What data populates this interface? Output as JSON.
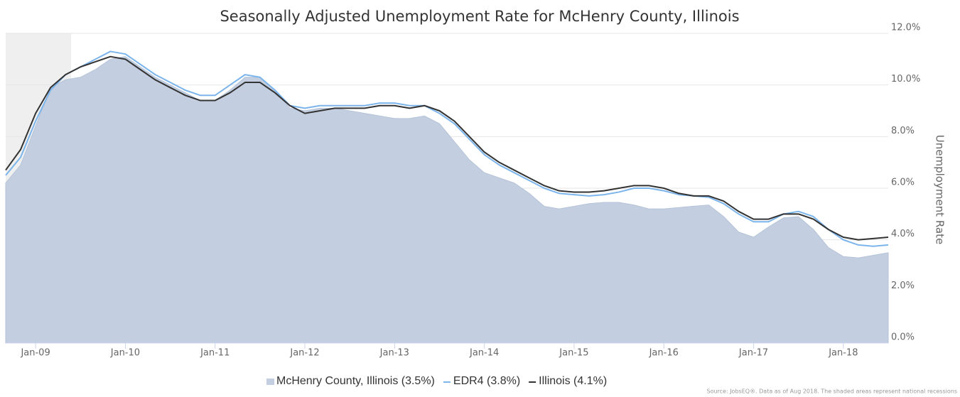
{
  "chart_data": {
    "type": "area-line",
    "title": "Seasonally Adjusted Unemployment Rate for McHenry County, Illinois",
    "y_axis_label": "Unemployment Rate",
    "source": "Source: JobsEQ®. Data as of Aug 2018. The shaded areas represent national recessions",
    "categories": [
      null,
      null,
      "Jan-09",
      null,
      null,
      null,
      null,
      null,
      "Jan-10",
      null,
      null,
      null,
      null,
      null,
      "Jan-11",
      null,
      null,
      null,
      null,
      null,
      "Jan-12",
      null,
      null,
      null,
      null,
      null,
      "Jan-13",
      null,
      null,
      null,
      null,
      null,
      "Jan-14",
      null,
      null,
      null,
      null,
      null,
      "Jan-15",
      null,
      null,
      null,
      null,
      null,
      "Jan-16",
      null,
      null,
      null,
      null,
      null,
      "Jan-17",
      null,
      null,
      null,
      null,
      null,
      "Jan-18",
      null,
      null,
      null
    ],
    "series": [
      {
        "name": "McHenry County, Illinois (3.5%)",
        "kind": "area",
        "color": "#c3cfe0",
        "values": [
          6.2,
          6.9,
          8.4,
          9.9,
          10.2,
          10.3,
          10.6,
          11.0,
          11.1,
          10.7,
          10.3,
          10.0,
          9.7,
          9.4,
          9.4,
          9.8,
          10.3,
          10.3,
          9.8,
          9.1,
          9.0,
          9.1,
          9.1,
          9.0,
          8.9,
          8.8,
          8.7,
          8.7,
          8.8,
          8.5,
          7.8,
          7.1,
          6.6,
          6.4,
          6.2,
          5.8,
          5.3,
          5.2,
          5.3,
          5.4,
          5.45,
          5.45,
          5.35,
          5.2,
          5.2,
          5.25,
          5.3,
          5.35,
          4.9,
          4.3,
          4.1,
          4.5,
          4.85,
          4.9,
          4.4,
          3.7,
          3.35,
          3.3,
          3.4,
          3.5
        ]
      },
      {
        "name": "EDR4 (3.8%)",
        "kind": "line",
        "color": "#7cb5ec",
        "values": [
          6.5,
          7.2,
          8.6,
          9.8,
          10.4,
          10.7,
          11.0,
          11.3,
          11.2,
          10.8,
          10.4,
          10.1,
          9.8,
          9.6,
          9.6,
          10.0,
          10.4,
          10.3,
          9.8,
          9.2,
          9.1,
          9.2,
          9.2,
          9.2,
          9.2,
          9.3,
          9.3,
          9.2,
          9.2,
          8.9,
          8.5,
          7.9,
          7.3,
          6.9,
          6.6,
          6.3,
          6.0,
          5.8,
          5.75,
          5.7,
          5.75,
          5.85,
          6.0,
          6.0,
          5.9,
          5.75,
          5.7,
          5.65,
          5.4,
          5.0,
          4.7,
          4.7,
          5.0,
          5.1,
          4.9,
          4.4,
          4.0,
          3.8,
          3.75,
          3.8
        ]
      },
      {
        "name": "Illinois (4.1%)",
        "kind": "line",
        "color": "#333333",
        "values": [
          6.7,
          7.5,
          8.9,
          9.9,
          10.4,
          10.7,
          10.9,
          11.1,
          11.0,
          10.6,
          10.2,
          9.9,
          9.6,
          9.4,
          9.4,
          9.7,
          10.1,
          10.1,
          9.7,
          9.2,
          8.9,
          9.0,
          9.1,
          9.1,
          9.1,
          9.2,
          9.2,
          9.1,
          9.2,
          9.0,
          8.6,
          8.0,
          7.4,
          7.0,
          6.7,
          6.4,
          6.1,
          5.9,
          5.85,
          5.85,
          5.9,
          6.0,
          6.1,
          6.1,
          6.0,
          5.8,
          5.7,
          5.7,
          5.5,
          5.1,
          4.8,
          4.8,
          5.0,
          5.0,
          4.8,
          4.4,
          4.1,
          4.0,
          4.05,
          4.1
        ]
      }
    ],
    "ylim": [
      0,
      12
    ],
    "yticks": [
      {
        "value": 0,
        "label": "0.0%"
      },
      {
        "value": 2,
        "label": "2.0%"
      },
      {
        "value": 4,
        "label": "4.0%"
      },
      {
        "value": 6,
        "label": "6.0%"
      },
      {
        "value": 8,
        "label": "8.0%"
      },
      {
        "value": 10,
        "label": "10.0%"
      },
      {
        "value": 12,
        "label": "12.0%"
      }
    ],
    "grid": true
  }
}
